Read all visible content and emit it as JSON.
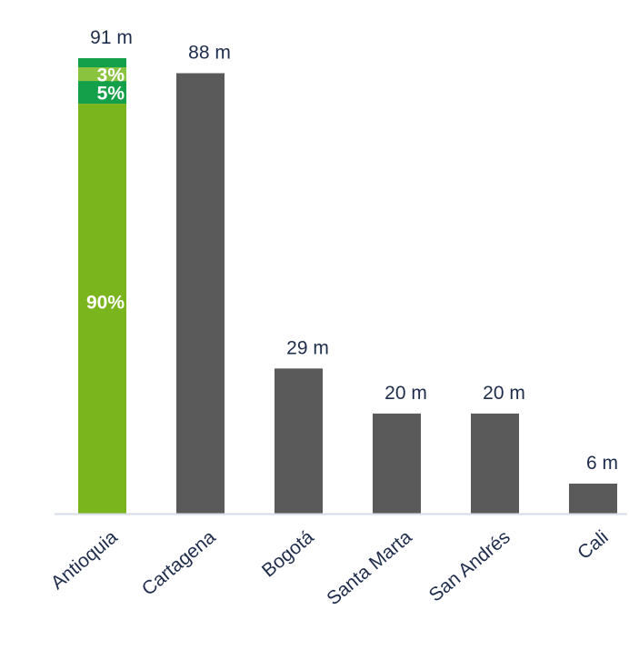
{
  "chart_data": {
    "type": "bar",
    "categories": [
      "Antioquia",
      "Cartagena",
      "Bogotá",
      "Santa Marta",
      "San Andrés",
      "Cali"
    ],
    "values": [
      91,
      88,
      29,
      20,
      20,
      6
    ],
    "value_labels": [
      "91 m",
      "88 m",
      "29 m",
      "20 m",
      "20 m",
      "6 m"
    ],
    "ylim": [
      0,
      91
    ],
    "grid": false,
    "legend": "none",
    "stacked_bar": {
      "category": "Antioquia",
      "segments": [
        {
          "label": "90%",
          "share": 0.9,
          "color": "#7ab51d"
        },
        {
          "label": "5%",
          "share": 0.05,
          "color": "#14a04a"
        },
        {
          "label": "3%",
          "share": 0.03,
          "color": "#8ac43f"
        }
      ],
      "top_band_color": "#14a04a"
    },
    "bar_color": "#5a5a5a",
    "axis_color": "#d6dce5"
  }
}
